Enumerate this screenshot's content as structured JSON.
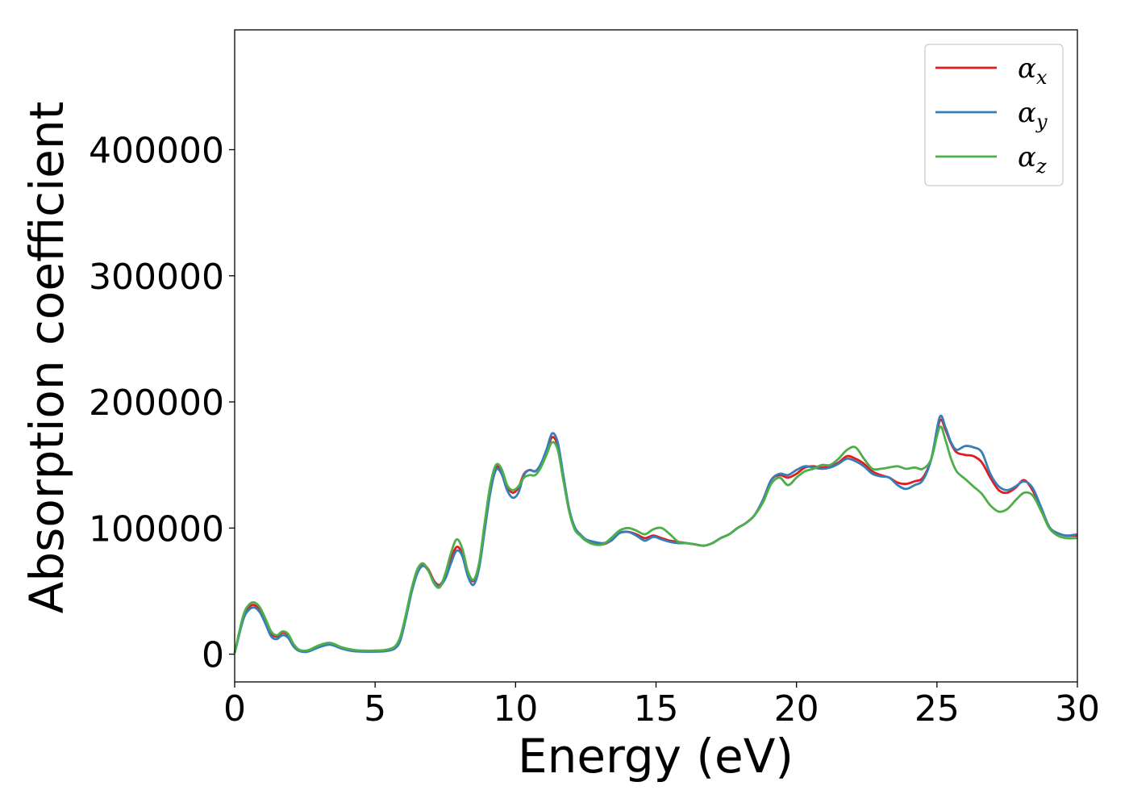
{
  "chart_data": {
    "type": "line",
    "xlabel": "Energy (eV)",
    "ylabel": "Absorption coefficient",
    "xlim": [
      0,
      30
    ],
    "ylim": [
      -22000,
      495000
    ],
    "xticks": [
      0,
      5,
      10,
      15,
      20,
      25,
      30
    ],
    "xtick_labels": [
      "0",
      "5",
      "10",
      "15",
      "20",
      "25",
      "30"
    ],
    "yticks": [
      0,
      100000,
      200000,
      300000,
      400000
    ],
    "ytick_labels": [
      "0",
      "100000",
      "200000",
      "300000",
      "400000"
    ],
    "grid": false,
    "legend_position": "top-right",
    "series": [
      {
        "name": "α",
        "subscript": "x",
        "color": "#e41a1c",
        "x": [
          0,
          0.3,
          0.5,
          0.7,
          0.9,
          1.1,
          1.3,
          1.5,
          1.7,
          1.9,
          2.1,
          2.3,
          2.6,
          3.0,
          3.4,
          3.8,
          4.2,
          4.6,
          5.0,
          5.4,
          5.7,
          5.9,
          6.1,
          6.3,
          6.5,
          6.7,
          6.9,
          7.1,
          7.3,
          7.5,
          7.7,
          7.9,
          8.1,
          8.3,
          8.5,
          8.7,
          8.9,
          9.1,
          9.3,
          9.5,
          9.7,
          9.9,
          10.1,
          10.3,
          10.5,
          10.7,
          10.9,
          11.1,
          11.3,
          11.5,
          11.7,
          11.9,
          12.1,
          12.3,
          12.5,
          12.8,
          13.1,
          13.4,
          13.7,
          14.0,
          14.3,
          14.6,
          14.9,
          15.2,
          15.5,
          15.8,
          16.1,
          16.4,
          16.7,
          17.0,
          17.3,
          17.6,
          17.9,
          18.2,
          18.5,
          18.8,
          19.1,
          19.4,
          19.7,
          20.0,
          20.3,
          20.6,
          20.9,
          21.2,
          21.5,
          21.8,
          22.1,
          22.4,
          22.7,
          23.0,
          23.3,
          23.6,
          23.9,
          24.2,
          24.5,
          24.8,
          25.1,
          25.3,
          25.5,
          25.7,
          26.0,
          26.3,
          26.6,
          26.9,
          27.2,
          27.5,
          27.8,
          28.1,
          28.4,
          28.7,
          29.0,
          29.3,
          29.6,
          30.0
        ],
        "y": [
          1000,
          28000,
          37000,
          39000,
          35000,
          26000,
          16000,
          14000,
          17000,
          15000,
          7000,
          3000,
          2500,
          6000,
          8000,
          5000,
          3000,
          2500,
          2500,
          3000,
          5000,
          12000,
          30000,
          50000,
          65000,
          71000,
          67000,
          58000,
          55000,
          62000,
          75000,
          85000,
          80000,
          65000,
          58000,
          70000,
          100000,
          130000,
          148000,
          145000,
          133000,
          128000,
          132000,
          143000,
          146000,
          145000,
          150000,
          160000,
          172000,
          165000,
          140000,
          115000,
          100000,
          95000,
          91000,
          88000,
          87000,
          90000,
          96000,
          97000,
          95000,
          92000,
          94000,
          92000,
          90000,
          89000,
          88000,
          87000,
          86000,
          88000,
          92000,
          95000,
          100000,
          104000,
          110000,
          122000,
          138000,
          142000,
          140000,
          143000,
          148000,
          149000,
          148000,
          149000,
          152000,
          157000,
          155000,
          151000,
          145000,
          142000,
          140000,
          136000,
          135000,
          137000,
          140000,
          155000,
          185000,
          178000,
          167000,
          160000,
          158000,
          157000,
          152000,
          140000,
          130000,
          128000,
          132000,
          138000,
          130000,
          115000,
          100000,
          96000,
          94000,
          94000
        ]
      },
      {
        "name": "α",
        "subscript": "y",
        "color": "#377eb8",
        "x": [
          0,
          0.3,
          0.5,
          0.7,
          0.9,
          1.1,
          1.3,
          1.5,
          1.7,
          1.9,
          2.1,
          2.3,
          2.6,
          3.0,
          3.4,
          3.8,
          4.2,
          4.6,
          5.0,
          5.4,
          5.7,
          5.9,
          6.1,
          6.3,
          6.5,
          6.7,
          6.9,
          7.1,
          7.3,
          7.5,
          7.7,
          7.9,
          8.1,
          8.3,
          8.5,
          8.7,
          8.9,
          9.1,
          9.3,
          9.5,
          9.7,
          9.9,
          10.1,
          10.3,
          10.5,
          10.7,
          10.9,
          11.1,
          11.3,
          11.5,
          11.7,
          11.9,
          12.1,
          12.3,
          12.5,
          12.8,
          13.1,
          13.4,
          13.7,
          14.0,
          14.3,
          14.6,
          14.9,
          15.2,
          15.5,
          15.8,
          16.1,
          16.4,
          16.7,
          17.0,
          17.3,
          17.6,
          17.9,
          18.2,
          18.5,
          18.8,
          19.1,
          19.4,
          19.7,
          20.0,
          20.3,
          20.6,
          20.9,
          21.2,
          21.5,
          21.8,
          22.1,
          22.4,
          22.7,
          23.0,
          23.3,
          23.6,
          23.9,
          24.2,
          24.5,
          24.8,
          25.1,
          25.3,
          25.5,
          25.7,
          26.0,
          26.3,
          26.6,
          26.9,
          27.2,
          27.5,
          27.8,
          28.1,
          28.4,
          28.7,
          29.0,
          29.3,
          29.6,
          30.0
        ],
        "y": [
          1000,
          27000,
          35000,
          37000,
          33000,
          24000,
          14000,
          12000,
          15000,
          13000,
          6000,
          2500,
          2000,
          5500,
          7500,
          4500,
          2500,
          2000,
          2000,
          2500,
          4500,
          11000,
          29000,
          49000,
          64000,
          70000,
          66000,
          57000,
          54000,
          60000,
          72000,
          82000,
          78000,
          62000,
          55000,
          68000,
          98000,
          128000,
          146000,
          143000,
          130000,
          124000,
          128000,
          142000,
          146000,
          145000,
          151000,
          162000,
          175000,
          168000,
          142000,
          116000,
          101000,
          95000,
          91000,
          89000,
          88000,
          90000,
          96000,
          97000,
          94000,
          90000,
          93000,
          91000,
          89000,
          88000,
          88000,
          87000,
          86000,
          88000,
          92000,
          95000,
          100000,
          104000,
          110000,
          122000,
          138000,
          143000,
          142000,
          146000,
          149000,
          148000,
          147000,
          148000,
          151000,
          155000,
          153000,
          149000,
          143000,
          141000,
          140000,
          134000,
          131000,
          134000,
          138000,
          155000,
          188000,
          180000,
          168000,
          162000,
          165000,
          164000,
          160000,
          143000,
          133000,
          130000,
          133000,
          137000,
          132000,
          117000,
          101000,
          96000,
          94000,
          95000
        ]
      },
      {
        "name": "α",
        "subscript": "z",
        "color": "#4daf4a",
        "x": [
          0,
          0.3,
          0.5,
          0.7,
          0.9,
          1.1,
          1.3,
          1.5,
          1.7,
          1.9,
          2.1,
          2.3,
          2.6,
          3.0,
          3.4,
          3.8,
          4.2,
          4.6,
          5.0,
          5.4,
          5.7,
          5.9,
          6.1,
          6.3,
          6.5,
          6.7,
          6.9,
          7.1,
          7.3,
          7.5,
          7.7,
          7.9,
          8.1,
          8.3,
          8.5,
          8.7,
          8.9,
          9.1,
          9.3,
          9.5,
          9.7,
          9.9,
          10.1,
          10.3,
          10.5,
          10.7,
          10.9,
          11.1,
          11.3,
          11.5,
          11.7,
          11.9,
          12.1,
          12.3,
          12.5,
          12.8,
          13.1,
          13.4,
          13.7,
          14.0,
          14.3,
          14.6,
          14.9,
          15.2,
          15.5,
          15.8,
          16.1,
          16.4,
          16.7,
          17.0,
          17.3,
          17.6,
          17.9,
          18.2,
          18.5,
          18.8,
          19.1,
          19.4,
          19.7,
          20.0,
          20.3,
          20.6,
          20.9,
          21.2,
          21.5,
          21.8,
          22.1,
          22.4,
          22.7,
          23.0,
          23.3,
          23.6,
          23.9,
          24.2,
          24.5,
          24.8,
          25.1,
          25.3,
          25.5,
          25.7,
          26.0,
          26.3,
          26.6,
          26.9,
          27.2,
          27.5,
          27.8,
          28.1,
          28.4,
          28.7,
          29.0,
          29.3,
          29.6,
          30.0
        ],
        "y": [
          1000,
          30000,
          39000,
          41000,
          37000,
          28000,
          18000,
          15000,
          18000,
          16000,
          8000,
          3500,
          3000,
          7000,
          9000,
          5500,
          3500,
          2800,
          2800,
          3500,
          6000,
          14000,
          32000,
          52000,
          67000,
          72000,
          66000,
          56000,
          53000,
          64000,
          80000,
          91000,
          84000,
          66000,
          59000,
          72000,
          104000,
          134000,
          150000,
          147000,
          134000,
          130000,
          133000,
          140000,
          142000,
          142000,
          148000,
          158000,
          168000,
          162000,
          138000,
          114000,
          99000,
          94000,
          90000,
          87000,
          87000,
          92000,
          98000,
          100000,
          98000,
          95000,
          99000,
          100000,
          95000,
          89000,
          88000,
          87000,
          86000,
          88000,
          92000,
          95000,
          100000,
          104000,
          110000,
          120000,
          135000,
          140000,
          134000,
          140000,
          145000,
          147000,
          150000,
          150000,
          155000,
          162000,
          164000,
          155000,
          147000,
          147000,
          148000,
          149000,
          147000,
          148000,
          147000,
          155000,
          180000,
          170000,
          155000,
          145000,
          139000,
          133000,
          127000,
          118000,
          113000,
          115000,
          122000,
          128000,
          126000,
          114000,
          100000,
          94000,
          92000,
          92000
        ]
      }
    ]
  }
}
